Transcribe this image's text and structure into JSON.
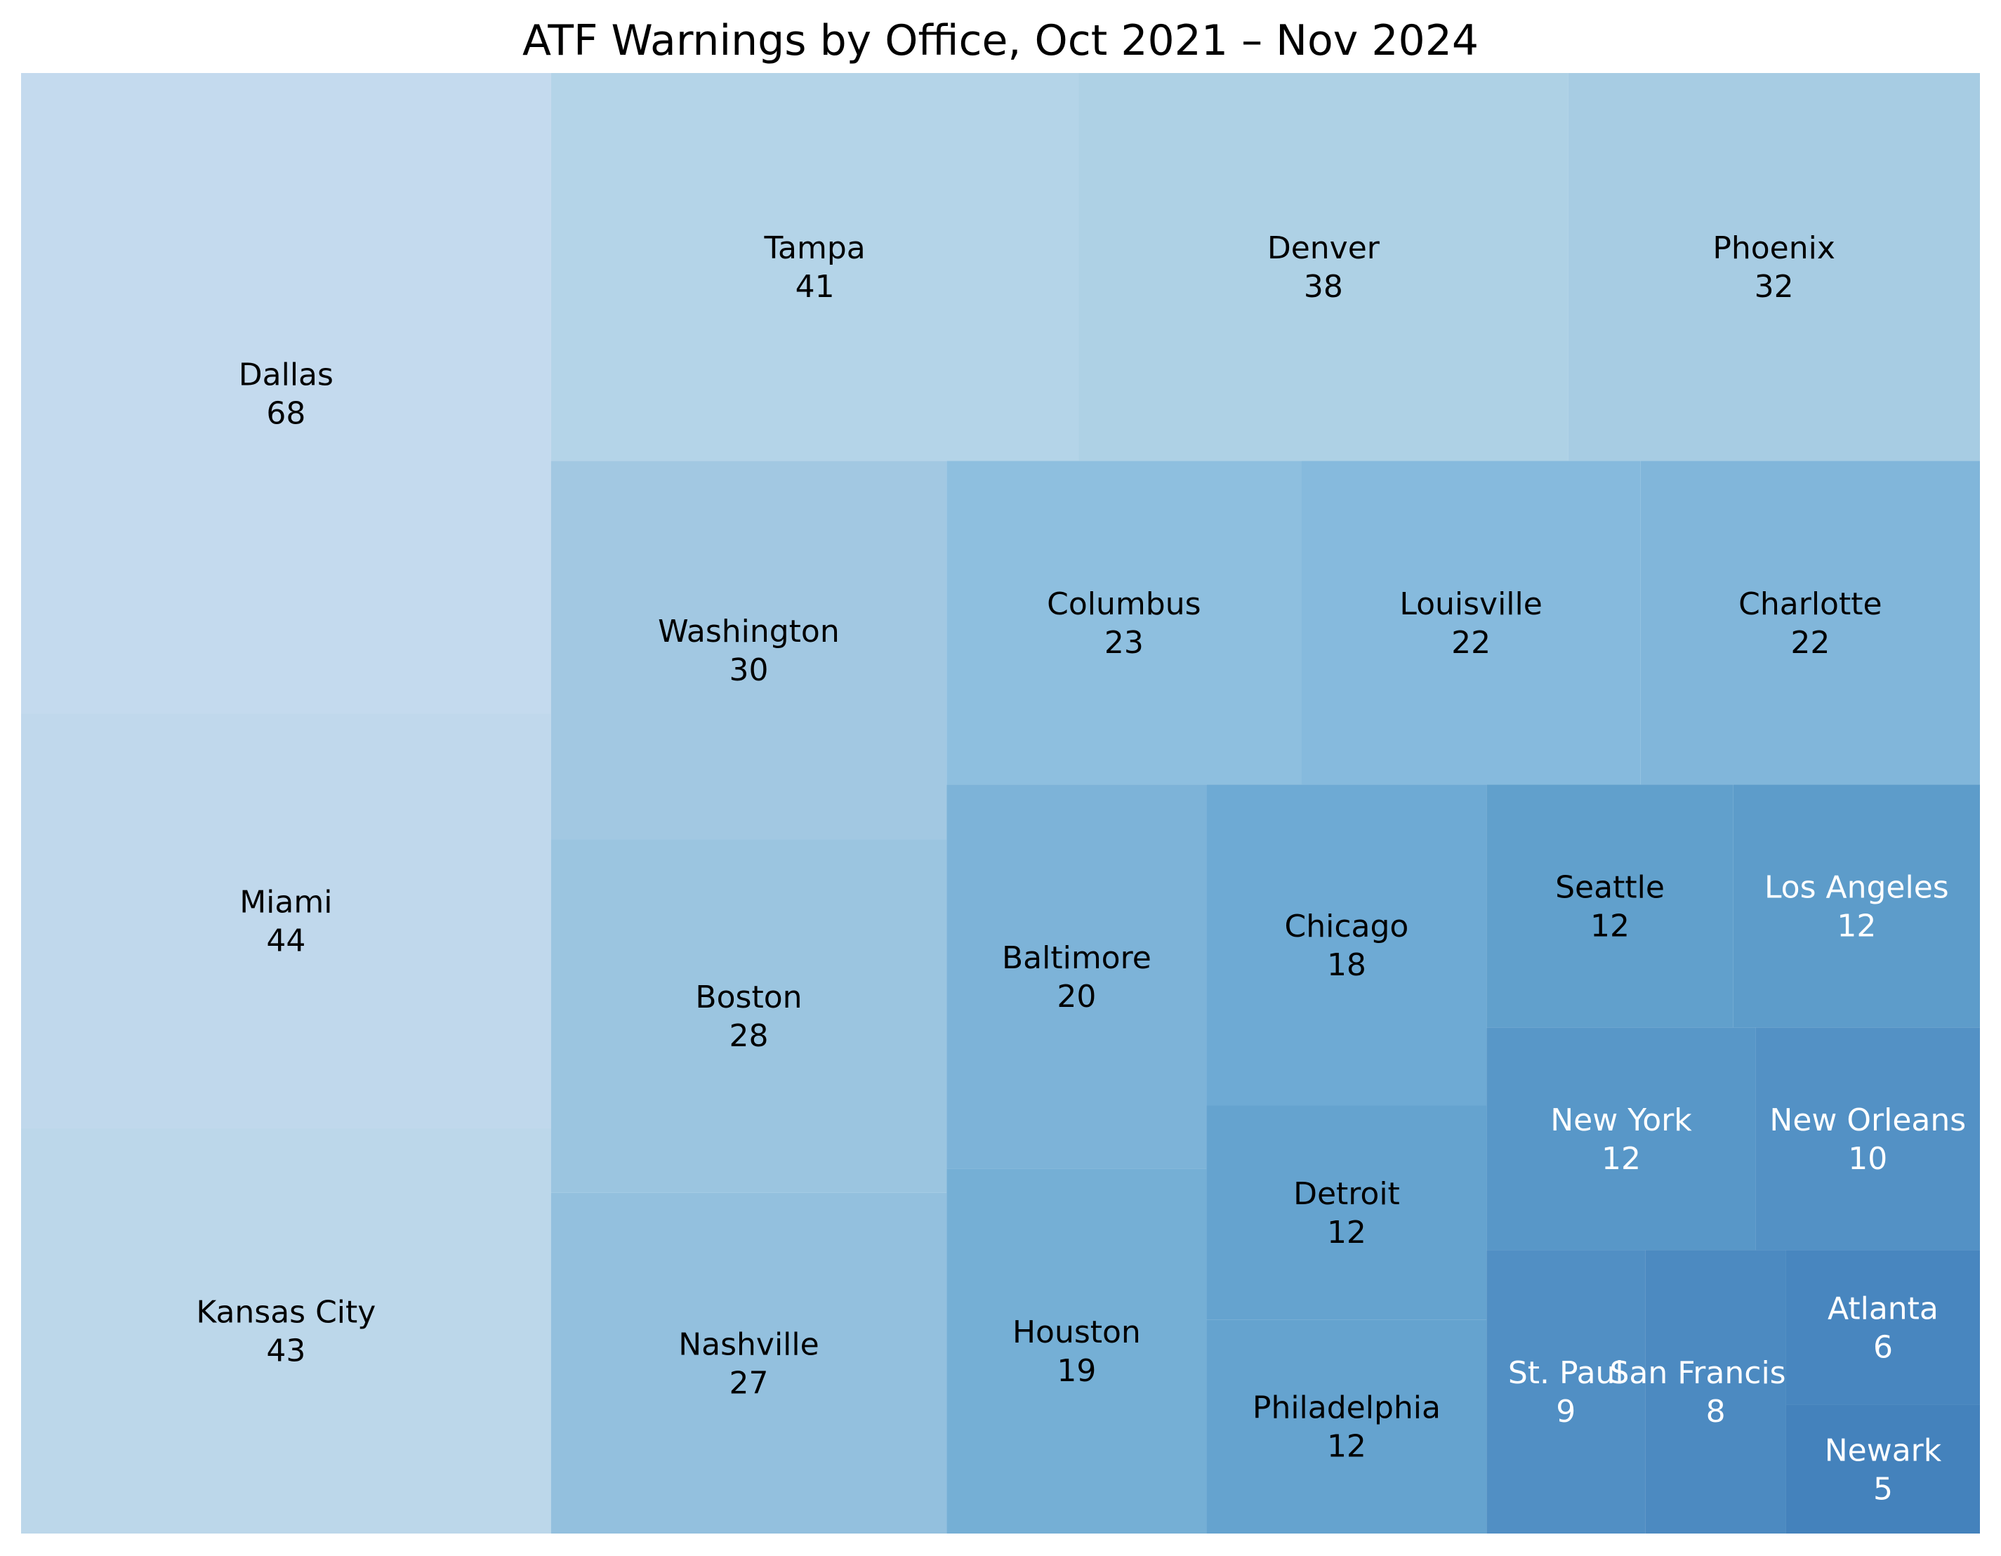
{
  "chart_data": {
    "type": "treemap",
    "title": "ATF Warnings by Office, Oct 2021 – Nov 2024",
    "items": [
      {
        "label": "Dallas",
        "value": 68,
        "color": "#c4daee",
        "text_color": "#000000"
      },
      {
        "label": "Miami",
        "value": 44,
        "color": "#c0d8ec",
        "text_color": "#000000"
      },
      {
        "label": "Kansas City",
        "value": 43,
        "color": "#bcd7ea",
        "text_color": "#000000"
      },
      {
        "label": "Tampa",
        "value": 41,
        "color": "#b4d4e8",
        "text_color": "#000000"
      },
      {
        "label": "Denver",
        "value": 38,
        "color": "#aed1e5",
        "text_color": "#000000"
      },
      {
        "label": "Phoenix",
        "value": 32,
        "color": "#a7cce3",
        "text_color": "#000000"
      },
      {
        "label": "Washington",
        "value": 30,
        "color": "#a2c8e2",
        "text_color": "#000000"
      },
      {
        "label": "Boston",
        "value": 28,
        "color": "#9bc5e0",
        "text_color": "#000000"
      },
      {
        "label": "Nashville",
        "value": 27,
        "color": "#93c0de",
        "text_color": "#000000"
      },
      {
        "label": "Columbus",
        "value": 23,
        "color": "#8ebfdf",
        "text_color": "#000000"
      },
      {
        "label": "Louisville",
        "value": 22,
        "color": "#86badd",
        "text_color": "#000000"
      },
      {
        "label": "Charlotte",
        "value": 22,
        "color": "#81b6da",
        "text_color": "#000000"
      },
      {
        "label": "Baltimore",
        "value": 20,
        "color": "#7db3d8",
        "text_color": "#000000"
      },
      {
        "label": "Houston",
        "value": 19,
        "color": "#75afd5",
        "text_color": "#000000"
      },
      {
        "label": "Chicago",
        "value": 18,
        "color": "#6eaad4",
        "text_color": "#000000"
      },
      {
        "label": "Detroit",
        "value": 12,
        "color": "#65a3cf",
        "text_color": "#000000"
      },
      {
        "label": "Philadelphia",
        "value": 12,
        "color": "#65a3cf",
        "text_color": "#000000"
      },
      {
        "label": "Seattle",
        "value": 12,
        "color": "#61a0cc",
        "text_color": "#000000"
      },
      {
        "label": "Los Angeles",
        "value": 12,
        "color": "#5d9cca",
        "text_color": "#ffffff"
      },
      {
        "label": "New York",
        "value": 12,
        "color": "#5897c8",
        "text_color": "#ffffff"
      },
      {
        "label": "New Orleans",
        "value": 10,
        "color": "#5391c5",
        "text_color": "#ffffff"
      },
      {
        "label": "St. Paul",
        "value": 9,
        "color": "#518fc4",
        "text_color": "#ffffff"
      },
      {
        "label": "San Francisco",
        "value": 8,
        "color": "#4c8ac1",
        "text_color": "#ffffff"
      },
      {
        "label": "Atlanta",
        "value": 6,
        "color": "#4886bf",
        "text_color": "#ffffff"
      },
      {
        "label": "Newark",
        "value": 5,
        "color": "#4482bc",
        "text_color": "#ffffff"
      }
    ]
  }
}
